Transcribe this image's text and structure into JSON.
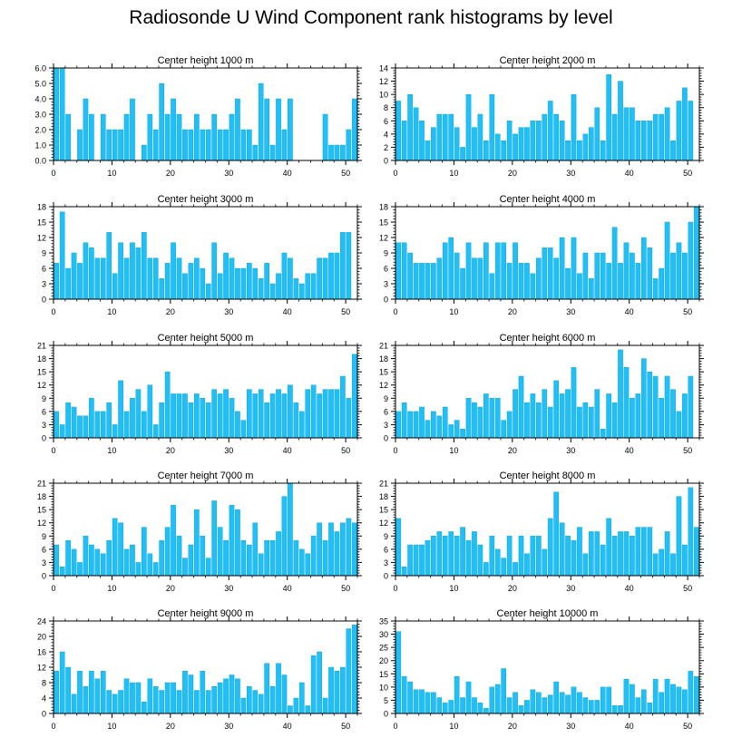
{
  "title": "Radiosonde U Wind Component rank histograms by level",
  "colors": {
    "bar": "#1ec0f7",
    "bar_stroke": "#0a98cc",
    "axis": "#000000"
  },
  "chart_data": [
    {
      "type": "bar",
      "title": "Center height 1000 m",
      "x": [
        0,
        1,
        2,
        3,
        4,
        5,
        6,
        7,
        8,
        9,
        10,
        11,
        12,
        13,
        14,
        15,
        16,
        17,
        18,
        19,
        20,
        21,
        22,
        23,
        24,
        25,
        26,
        27,
        28,
        29,
        30,
        31,
        32,
        33,
        34,
        35,
        36,
        37,
        38,
        39,
        40,
        41,
        42,
        43,
        44,
        45,
        46,
        47,
        48,
        49,
        50,
        51
      ],
      "values": [
        6,
        6,
        3,
        0,
        2,
        4,
        3,
        0,
        3,
        2,
        2,
        2,
        3,
        4,
        0,
        1,
        3,
        2,
        5,
        3,
        4,
        3,
        2,
        2,
        3,
        2,
        2,
        3,
        2,
        2,
        3,
        4,
        2,
        2,
        1,
        5,
        4,
        1,
        4,
        2,
        4,
        0,
        0,
        0,
        0,
        0,
        3,
        1,
        1,
        1,
        2,
        4
      ],
      "ylim": [
        0,
        6.0
      ],
      "yticks": [
        "0.0",
        "1.0",
        "2.0",
        "3.0",
        "4.0",
        "5.0",
        "6.0"
      ],
      "xlim": [
        0,
        52
      ],
      "xticks": [
        "0",
        "10",
        "20",
        "30",
        "40",
        "50"
      ]
    },
    {
      "type": "bar",
      "title": "Center height 2000 m",
      "x": [
        0,
        1,
        2,
        3,
        4,
        5,
        6,
        7,
        8,
        9,
        10,
        11,
        12,
        13,
        14,
        15,
        16,
        17,
        18,
        19,
        20,
        21,
        22,
        23,
        24,
        25,
        26,
        27,
        28,
        29,
        30,
        31,
        32,
        33,
        34,
        35,
        36,
        37,
        38,
        39,
        40,
        41,
        42,
        43,
        44,
        45,
        46,
        47,
        48,
        49,
        50,
        51
      ],
      "values": [
        9,
        6,
        10,
        8,
        6,
        3,
        5,
        7,
        7,
        7,
        5,
        2,
        10,
        5,
        7,
        3,
        10,
        4,
        3,
        6,
        4,
        5,
        5,
        6,
        6,
        7,
        9,
        7,
        6,
        3,
        10,
        3,
        4,
        5,
        8,
        3,
        13,
        7,
        12,
        8,
        8,
        6,
        6,
        6,
        7,
        7,
        8,
        3,
        9,
        11,
        9,
        0
      ],
      "ylim": [
        0,
        14
      ],
      "yticks": [
        "0",
        "2",
        "4",
        "6",
        "8",
        "10",
        "12",
        "14"
      ],
      "xlim": [
        0,
        52
      ],
      "xticks": [
        "0",
        "10",
        "20",
        "30",
        "40",
        "50"
      ]
    },
    {
      "type": "bar",
      "title": "Center height 3000 m",
      "x": [
        0,
        1,
        2,
        3,
        4,
        5,
        6,
        7,
        8,
        9,
        10,
        11,
        12,
        13,
        14,
        15,
        16,
        17,
        18,
        19,
        20,
        21,
        22,
        23,
        24,
        25,
        26,
        27,
        28,
        29,
        30,
        31,
        32,
        33,
        34,
        35,
        36,
        37,
        38,
        39,
        40,
        41,
        42,
        43,
        44,
        45,
        46,
        47,
        48,
        49,
        50,
        51
      ],
      "values": [
        7,
        17,
        6,
        9,
        7,
        11,
        10,
        8,
        8,
        13,
        5,
        11,
        8,
        11,
        10,
        13,
        8,
        8,
        4,
        7,
        11,
        8,
        5,
        7,
        8,
        6,
        3,
        11,
        5,
        9,
        8,
        6,
        6,
        7,
        6,
        4,
        7,
        3,
        5,
        9,
        8,
        4,
        3,
        5,
        5,
        8,
        8,
        9,
        9,
        13,
        13,
        0
      ],
      "ylim": [
        0,
        18
      ],
      "yticks": [
        "0",
        "3",
        "6",
        "9",
        "12",
        "15",
        "18"
      ],
      "xlim": [
        0,
        52
      ],
      "xticks": [
        "0",
        "10",
        "20",
        "30",
        "40",
        "50"
      ]
    },
    {
      "type": "bar",
      "title": "Center height 4000 m",
      "x": [
        0,
        1,
        2,
        3,
        4,
        5,
        6,
        7,
        8,
        9,
        10,
        11,
        12,
        13,
        14,
        15,
        16,
        17,
        18,
        19,
        20,
        21,
        22,
        23,
        24,
        25,
        26,
        27,
        28,
        29,
        30,
        31,
        32,
        33,
        34,
        35,
        36,
        37,
        38,
        39,
        40,
        41,
        42,
        43,
        44,
        45,
        46,
        47,
        48,
        49,
        50,
        51
      ],
      "values": [
        11,
        11,
        9,
        7,
        7,
        7,
        7,
        8,
        11,
        12,
        9,
        6,
        11,
        8,
        8,
        11,
        5,
        11,
        11,
        7,
        11,
        7,
        7,
        5,
        8,
        10,
        10,
        8,
        12,
        6,
        12,
        5,
        9,
        4,
        9,
        9,
        7,
        14,
        7,
        11,
        9,
        7,
        12,
        10,
        4,
        6,
        15,
        9,
        11,
        9,
        15,
        18
      ],
      "ylim": [
        0,
        18
      ],
      "yticks": [
        "0",
        "3",
        "6",
        "9",
        "12",
        "15",
        "18"
      ],
      "xlim": [
        0,
        52
      ],
      "xticks": [
        "0",
        "10",
        "20",
        "30",
        "40",
        "50"
      ]
    },
    {
      "type": "bar",
      "title": "Center height 5000 m",
      "x": [
        0,
        1,
        2,
        3,
        4,
        5,
        6,
        7,
        8,
        9,
        10,
        11,
        12,
        13,
        14,
        15,
        16,
        17,
        18,
        19,
        20,
        21,
        22,
        23,
        24,
        25,
        26,
        27,
        28,
        29,
        30,
        31,
        32,
        33,
        34,
        35,
        36,
        37,
        38,
        39,
        40,
        41,
        42,
        43,
        44,
        45,
        46,
        47,
        48,
        49,
        50,
        51
      ],
      "values": [
        6,
        3,
        8,
        7,
        5,
        5,
        9,
        6,
        6,
        8,
        3,
        13,
        6,
        9,
        11,
        6,
        12,
        3,
        8,
        15,
        10,
        10,
        10,
        8,
        10,
        9,
        8,
        11,
        10,
        11,
        9,
        6,
        4,
        11,
        10,
        11,
        8,
        10,
        11,
        10,
        12,
        8,
        6,
        11,
        12,
        10,
        11,
        11,
        11,
        14,
        9,
        19
      ],
      "ylim": [
        0,
        21
      ],
      "yticks": [
        "0",
        "3",
        "6",
        "9",
        "12",
        "15",
        "18",
        "21"
      ],
      "xlim": [
        0,
        52
      ],
      "xticks": [
        "0",
        "10",
        "20",
        "30",
        "40",
        "50"
      ]
    },
    {
      "type": "bar",
      "title": "Center height 6000 m",
      "x": [
        0,
        1,
        2,
        3,
        4,
        5,
        6,
        7,
        8,
        9,
        10,
        11,
        12,
        13,
        14,
        15,
        16,
        17,
        18,
        19,
        20,
        21,
        22,
        23,
        24,
        25,
        26,
        27,
        28,
        29,
        30,
        31,
        32,
        33,
        34,
        35,
        36,
        37,
        38,
        39,
        40,
        41,
        42,
        43,
        44,
        45,
        46,
        47,
        48,
        49,
        50,
        51
      ],
      "values": [
        6,
        8,
        6,
        6,
        7,
        4,
        6,
        5,
        7,
        3,
        4,
        2,
        9,
        8,
        7,
        10,
        9,
        9,
        4,
        6,
        11,
        14,
        8,
        10,
        8,
        11,
        7,
        13,
        10,
        11,
        16,
        7,
        8,
        7,
        11,
        2,
        10,
        8,
        20,
        16,
        9,
        10,
        18,
        15,
        14,
        9,
        14,
        11,
        6,
        10,
        14,
        0
      ],
      "ylim": [
        0,
        21
      ],
      "yticks": [
        "0",
        "3",
        "6",
        "9",
        "12",
        "15",
        "18",
        "21"
      ],
      "xlim": [
        0,
        52
      ],
      "xticks": [
        "0",
        "10",
        "20",
        "30",
        "40",
        "50"
      ]
    },
    {
      "type": "bar",
      "title": "Center height 7000 m",
      "x": [
        0,
        1,
        2,
        3,
        4,
        5,
        6,
        7,
        8,
        9,
        10,
        11,
        12,
        13,
        14,
        15,
        16,
        17,
        18,
        19,
        20,
        21,
        22,
        23,
        24,
        25,
        26,
        27,
        28,
        29,
        30,
        31,
        32,
        33,
        34,
        35,
        36,
        37,
        38,
        39,
        40,
        41,
        42,
        43,
        44,
        45,
        46,
        47,
        48,
        49,
        50,
        51
      ],
      "values": [
        7,
        2,
        8,
        6,
        3,
        9,
        7,
        6,
        5,
        8,
        13,
        12,
        6,
        7,
        3,
        11,
        5,
        3,
        8,
        11,
        16,
        9,
        4,
        7,
        15,
        9,
        4,
        17,
        11,
        8,
        16,
        15,
        8,
        7,
        12,
        5,
        8,
        8,
        10,
        18,
        21,
        8,
        6,
        5,
        9,
        12,
        8,
        12,
        10,
        12,
        13,
        12
      ],
      "ylim": [
        0,
        21
      ],
      "yticks": [
        "0",
        "3",
        "6",
        "9",
        "12",
        "15",
        "18",
        "21"
      ],
      "xlim": [
        0,
        52
      ],
      "xticks": [
        "0",
        "10",
        "20",
        "30",
        "40",
        "50"
      ]
    },
    {
      "type": "bar",
      "title": "Center height 8000 m",
      "x": [
        0,
        1,
        2,
        3,
        4,
        5,
        6,
        7,
        8,
        9,
        10,
        11,
        12,
        13,
        14,
        15,
        16,
        17,
        18,
        19,
        20,
        21,
        22,
        23,
        24,
        25,
        26,
        27,
        28,
        29,
        30,
        31,
        32,
        33,
        34,
        35,
        36,
        37,
        38,
        39,
        40,
        41,
        42,
        43,
        44,
        45,
        46,
        47,
        48,
        49,
        50,
        51
      ],
      "values": [
        13,
        2,
        7,
        7,
        7,
        8,
        9,
        10,
        9,
        10,
        9,
        11,
        8,
        10,
        7,
        3,
        9,
        6,
        4,
        9,
        3,
        9,
        5,
        9,
        9,
        6,
        13,
        19,
        12,
        9,
        8,
        11,
        5,
        10,
        10,
        7,
        13,
        9,
        10,
        10,
        9,
        11,
        11,
        11,
        5,
        6,
        10,
        5,
        18,
        7,
        20,
        11
      ],
      "ylim": [
        0,
        21
      ],
      "yticks": [
        "0",
        "3",
        "6",
        "9",
        "12",
        "15",
        "18",
        "21"
      ],
      "xlim": [
        0,
        52
      ],
      "xticks": [
        "0",
        "10",
        "20",
        "30",
        "40",
        "50"
      ]
    },
    {
      "type": "bar",
      "title": "Center height 9000 m",
      "x": [
        0,
        1,
        2,
        3,
        4,
        5,
        6,
        7,
        8,
        9,
        10,
        11,
        12,
        13,
        14,
        15,
        16,
        17,
        18,
        19,
        20,
        21,
        22,
        23,
        24,
        25,
        26,
        27,
        28,
        29,
        30,
        31,
        32,
        33,
        34,
        35,
        36,
        37,
        38,
        39,
        40,
        41,
        42,
        43,
        44,
        45,
        46,
        47,
        48,
        49,
        50,
        51
      ],
      "values": [
        11,
        16,
        12,
        5,
        11,
        7,
        11,
        9,
        11,
        6,
        5,
        6,
        9,
        8,
        8,
        3,
        9,
        7,
        6,
        8,
        8,
        6,
        11,
        10,
        6,
        11,
        6,
        7,
        8,
        9,
        10,
        9,
        4,
        7,
        6,
        5,
        13,
        7,
        13,
        10,
        2,
        4,
        8,
        2,
        15,
        16,
        4,
        12,
        11,
        12,
        22,
        23
      ],
      "ylim": [
        0,
        24
      ],
      "yticks": [
        "0",
        "4",
        "8",
        "12",
        "16",
        "20",
        "24"
      ],
      "xlim": [
        0,
        52
      ],
      "xticks": [
        "0",
        "10",
        "20",
        "30",
        "40",
        "50"
      ]
    },
    {
      "type": "bar",
      "title": "Center height 10000 m",
      "x": [
        0,
        1,
        2,
        3,
        4,
        5,
        6,
        7,
        8,
        9,
        10,
        11,
        12,
        13,
        14,
        15,
        16,
        17,
        18,
        19,
        20,
        21,
        22,
        23,
        24,
        25,
        26,
        27,
        28,
        29,
        30,
        31,
        32,
        33,
        34,
        35,
        36,
        37,
        38,
        39,
        40,
        41,
        42,
        43,
        44,
        45,
        46,
        47,
        48,
        49,
        50,
        51
      ],
      "values": [
        31,
        14,
        12,
        9,
        9,
        8,
        8,
        6,
        4,
        5,
        14,
        6,
        12,
        6,
        4,
        2,
        10,
        11,
        17,
        6,
        8,
        3,
        5,
        9,
        8,
        6,
        7,
        12,
        8,
        7,
        10,
        8,
        6,
        5,
        5,
        10,
        10,
        3,
        3,
        13,
        11,
        6,
        9,
        4,
        13,
        8,
        13,
        11,
        10,
        9,
        16,
        14
      ],
      "ylim": [
        0,
        35
      ],
      "yticks": [
        "0",
        "5",
        "10",
        "15",
        "20",
        "25",
        "30",
        "35"
      ],
      "xlim": [
        0,
        52
      ],
      "xticks": [
        "0",
        "10",
        "20",
        "30",
        "40",
        "50"
      ]
    }
  ]
}
